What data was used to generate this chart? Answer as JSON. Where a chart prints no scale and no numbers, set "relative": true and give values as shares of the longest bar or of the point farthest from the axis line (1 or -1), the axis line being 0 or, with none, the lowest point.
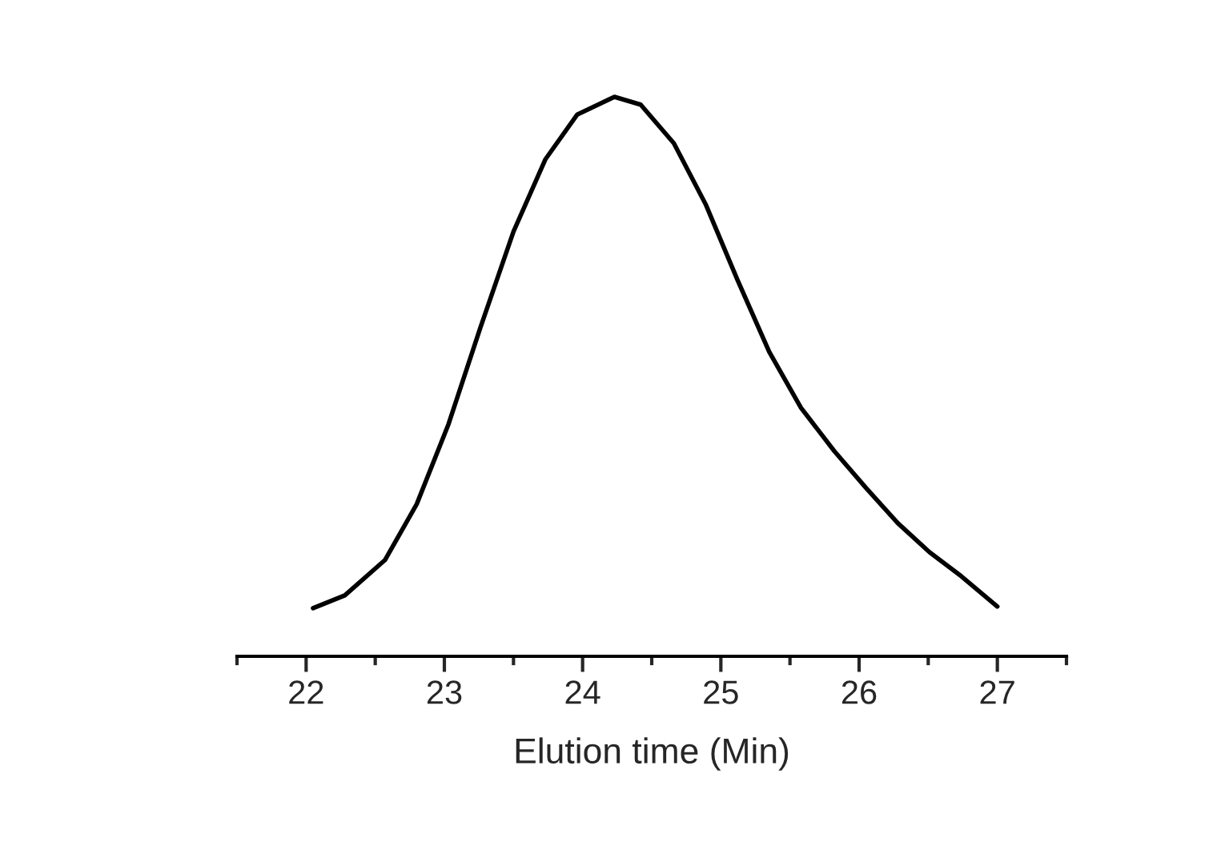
{
  "chart_data": {
    "type": "line",
    "xlabel": "Elution time (Min)",
    "relative": true,
    "xlim": [
      21.5,
      27.5
    ],
    "xticks": [
      {
        "value": 21.5,
        "label": null
      },
      22,
      {
        "value": 22.5,
        "label": null
      },
      23,
      {
        "value": 23.5,
        "label": null
      },
      24,
      {
        "value": 24.5,
        "label": null
      },
      25,
      {
        "value": 25.5,
        "label": null
      },
      26,
      {
        "value": 26.5,
        "label": null
      },
      27,
      {
        "value": 27.5,
        "label": null
      }
    ],
    "tick_labels": "x",
    "grid": false,
    "legend": false,
    "marker": "none",
    "line_style": "solid",
    "series": [
      {
        "color": "#000000",
        "x": [
          22.05,
          22.28,
          22.57,
          22.8,
          23.03,
          23.26,
          23.5,
          23.73,
          23.96,
          24.23,
          24.42,
          24.66,
          24.89,
          25.12,
          25.35,
          25.58,
          25.82,
          26.05,
          26.28,
          26.51,
          26.74,
          27.0
        ],
        "values": [
          0.086,
          0.109,
          0.172,
          0.272,
          0.415,
          0.587,
          0.759,
          0.888,
          0.968,
          1.0,
          0.986,
          0.917,
          0.808,
          0.673,
          0.544,
          0.444,
          0.367,
          0.301,
          0.238,
          0.186,
          0.143,
          0.089
        ]
      }
    ]
  }
}
